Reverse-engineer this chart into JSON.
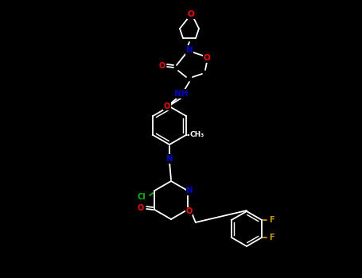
{
  "background_color": "#000000",
  "bond_color": "#ffffff",
  "atom_colors": {
    "O": "#ff0000",
    "N": "#0000cd",
    "Cl": "#00bb00",
    "F": "#cc9900",
    "C": "#ffffff"
  },
  "figsize": [
    4.55,
    3.5
  ],
  "dpi": 100,
  "lw": 1.3,
  "fontsize": 7.5
}
